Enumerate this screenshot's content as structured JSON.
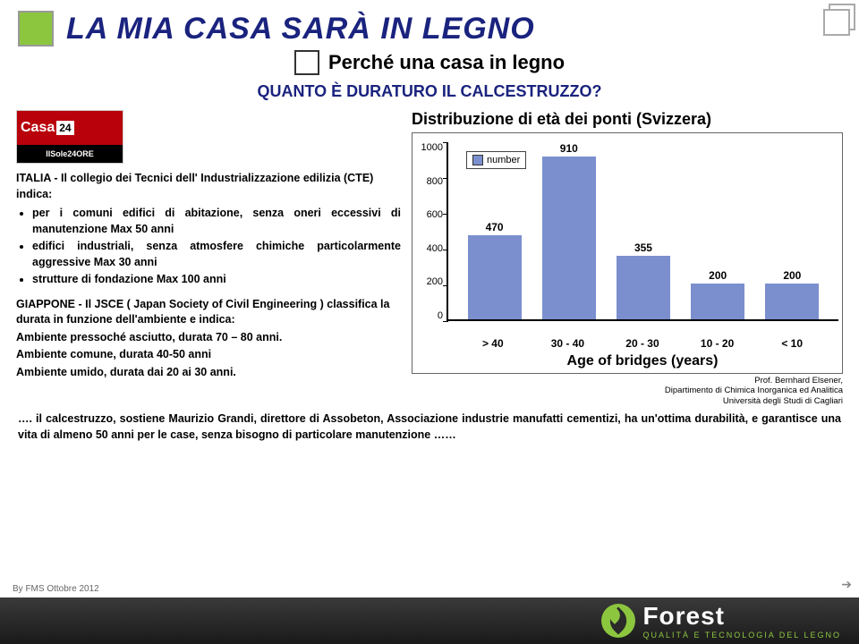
{
  "header": {
    "main_title": "LA MIA CASA SARÀ IN LEGNO",
    "subtitle": "Perché una casa in legno",
    "question": "QUANTO È DURATURO IL CALCESTRUZZO?"
  },
  "magazine": {
    "name": "Casa",
    "num": "24",
    "tag": "IlSole24ORE"
  },
  "italia": {
    "lead": "ITALIA - Il collegio dei Tecnici dell' Industrializzazione edilizia (CTE) indica:",
    "b1": "per i comuni edifici di abitazione, senza oneri eccessivi di manutenzione Max 50 anni",
    "b2": "edifici industriali, senza atmosfere chimiche particolarmente aggressive Max 30 anni",
    "b3": "strutture di fondazione Max 100 anni"
  },
  "giappone": {
    "lead": "GIAPPONE - Il JSCE ( Japan Society of Civil Engineering ) classifica la durata in funzione dell'ambiente e indica:",
    "l1": "Ambiente pressoché asciutto, durata 70 – 80 anni.",
    "l2": "Ambiente comune, durata 40-50 anni",
    "l3": "Ambiente umido, durata dai 20 ai 30 anni."
  },
  "chart": {
    "title": "Distribuzione di età dei ponti (Svizzera)",
    "legend": "number",
    "y_ticks": [
      "1000",
      "800",
      "600",
      "400",
      "200",
      "0"
    ],
    "ymax": 1000,
    "bars": [
      {
        "label": "> 40",
        "value": 470,
        "color": "#7b8fce"
      },
      {
        "label": "30 - 40",
        "value": 910,
        "color": "#7b8fce"
      },
      {
        "label": "20 - 30",
        "value": 355,
        "color": "#7b8fce"
      },
      {
        "label": "10 - 20",
        "value": 200,
        "color": "#7b8fce"
      },
      {
        "label": "< 10",
        "value": 200,
        "color": "#7b8fce"
      }
    ],
    "x_title": "Age of bridges (years)",
    "caption1": "Prof. Bernhard Elsener,",
    "caption2": "Dipartimento di Chimica Inorganica ed Analitica",
    "caption3": "Università degli Studi di Cagliari"
  },
  "quote": "…. il calcestruzzo, sostiene Maurizio Grandi, direttore di Assobeton, Associazione industrie manufatti cementizi, ha un'ottima durabilità, e garantisce una vita di almeno 50 anni per le case, senza bisogno di particolare manutenzione ……",
  "footer": {
    "credit": "By FMS Ottobre 2012",
    "brand": "Forest",
    "brand_tag": "QUALITÀ E TECNOLOGIA DEL LEGNO"
  }
}
